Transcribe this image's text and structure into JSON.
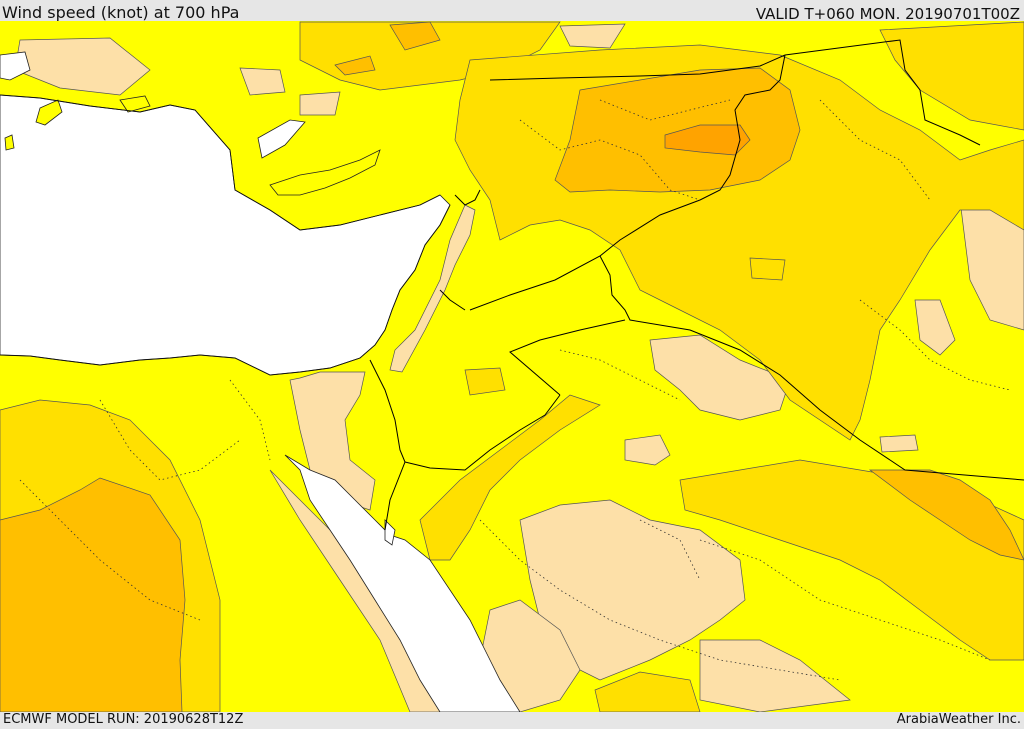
{
  "header": {
    "title": "Wind speed (knot) at 700 hPa",
    "valid": "VALID T+060 MON. 20190701T00Z"
  },
  "footer": {
    "model_run": "ECMWF MODEL RUN: 20190628T12Z",
    "credit": "ArabiaWeather Inc."
  },
  "map": {
    "colors": {
      "sea": "#ffffff",
      "level_light": "#fde0a8",
      "level_base": "#ffff00",
      "level_mid": "#ffe000",
      "level_high": "#ffbf00",
      "level_top": "#ffa300",
      "border": "#000000"
    }
  }
}
